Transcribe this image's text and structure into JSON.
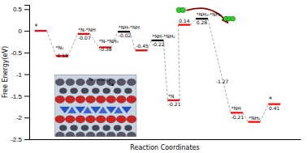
{
  "chart_data": {
    "type": "levels",
    "xlabel": "Reaction Coordinates",
    "ylabel": "Free Energy(eV)",
    "xlim": [
      -0.1,
      10.0
    ],
    "ylim": [
      -2.5,
      0.6
    ],
    "yticks": [
      -2.5,
      -2.0,
      -1.5,
      -1.0,
      -0.5,
      0.0,
      0.5
    ],
    "tick_labels": "y",
    "x1": [
      0.1,
      0.9,
      1.7,
      2.5,
      3.2,
      3.85,
      4.45,
      5.05,
      5.45,
      6.1,
      7.4,
      8.05,
      8.8
    ],
    "x2": [
      0.55,
      1.35,
      2.15,
      2.95,
      3.65,
      4.3,
      4.9,
      5.5,
      5.9,
      6.55,
      7.85,
      8.5,
      9.25
    ],
    "values": [
      0.0,
      -0.58,
      -0.07,
      -0.38,
      -0.02,
      -0.45,
      -0.22,
      -1.6,
      0.14,
      0.28,
      -1.89,
      -2.1,
      -1.69
    ],
    "colors": [
      "red",
      "red",
      "red",
      "red",
      "black",
      "red",
      "black",
      "red",
      "red",
      "black",
      "red",
      "red",
      "red"
    ],
    "annotations": [
      {
        "x": 0.1,
        "y": 0.03,
        "text": "*"
      },
      {
        "x": 0.88,
        "y": -0.53,
        "text": "-0.58"
      },
      {
        "x": 0.88,
        "y": -0.43,
        "text": "*N₂"
      },
      {
        "x": 1.72,
        "y": -0.02,
        "text": "*N-*NH"
      },
      {
        "x": 1.72,
        "y": -0.12,
        "text": "-0.07"
      },
      {
        "x": 2.5,
        "y": -0.28,
        "text": "*N-*NH₂"
      },
      {
        "x": 2.5,
        "y": -0.38,
        "text": "-0.38"
      },
      {
        "x": 3.22,
        "y": 0.03,
        "text": "*NH-*NH"
      },
      {
        "x": 3.22,
        "y": -0.07,
        "text": "-0.02"
      },
      {
        "x": 3.87,
        "y": -0.4,
        "text": "-0.45"
      },
      {
        "x": 4.47,
        "y": -0.17,
        "text": "*NH-*NH₂"
      },
      {
        "x": 4.47,
        "y": -0.27,
        "text": "-0.22"
      },
      {
        "x": 5.07,
        "y": -1.55,
        "text": "*N"
      },
      {
        "x": 5.07,
        "y": -1.65,
        "text": "-0.21"
      },
      {
        "x": 5.47,
        "y": 0.19,
        "text": "0.14"
      },
      {
        "x": 6.12,
        "y": 0.33,
        "text": "*NH₂-*NH₂"
      },
      {
        "x": 6.12,
        "y": 0.23,
        "text": "0.28"
      },
      {
        "x": 6.85,
        "y": -1.22,
        "text": "-1.27"
      },
      {
        "x": 7.42,
        "y": -1.84,
        "text": "*NH"
      },
      {
        "x": 7.42,
        "y": -1.94,
        "text": "-0.21"
      },
      {
        "x": 8.07,
        "y": -2.05,
        "text": "*NH₂"
      },
      {
        "x": 8.82,
        "y": -1.64,
        "text": "*"
      },
      {
        "x": 8.82,
        "y": -1.74,
        "text": "0.41"
      }
    ],
    "arrow": {
      "start": [
        5.75,
        0.47
      ],
      "end": [
        7.3,
        0.18
      ],
      "color": "darkred"
    },
    "molecules": [
      {
        "x": 5.55,
        "y": 0.48,
        "atoms": 2
      },
      {
        "x": 7.35,
        "y": 0.28,
        "atoms": 3
      }
    ],
    "inset_label": "Te vacancy"
  }
}
